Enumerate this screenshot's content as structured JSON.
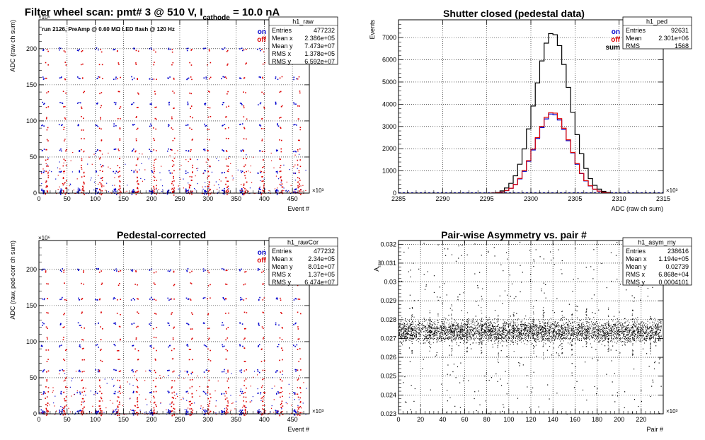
{
  "pads": [
    {
      "id": "raw",
      "title": "Filter wheel scan: pmt#   3 @   510 V, I",
      "title_sub": "cathode",
      "title_tail": " = 10.0 nA",
      "subtitle": "run 2126, PreAmp @ 0.60 MΩ   LED flash @  120 Hz",
      "ylabel": "ADC (raw ch sum)",
      "xlabel": "Event #",
      "xexp": "×10³",
      "yexp": "×10⁶",
      "legend": [
        {
          "text": "on",
          "color": "#0000cc"
        },
        {
          "text": "off",
          "color": "#dd0000"
        }
      ],
      "stats": {
        "name": "h1_raw",
        "rows": [
          [
            "Entries",
            "477232"
          ],
          [
            "Mean x",
            "2.386e+05"
          ],
          [
            "Mean y",
            "7.473e+07"
          ],
          [
            "RMS x",
            "1.378e+05"
          ],
          [
            "RMS y",
            "6.592e+07"
          ]
        ]
      }
    },
    {
      "id": "ped",
      "title": "Shutter closed (pedestal data)",
      "ylabel": "Events",
      "xlabel": "ADC (raw ch sum)",
      "xexp": "×10³",
      "legend": [
        {
          "text": "on",
          "color": "#0000cc"
        },
        {
          "text": "off",
          "color": "#dd0000"
        },
        {
          "text": "sum",
          "color": "#000000"
        }
      ],
      "stats": {
        "name": "h1_ped",
        "rows": [
          [
            "Entries",
            "92631"
          ],
          [
            "Mean",
            "2.301e+06"
          ],
          [
            "RMS",
            "1568"
          ]
        ]
      }
    },
    {
      "id": "cor",
      "title": "Pedestal-corrected",
      "ylabel": "ADC (raw, ped-corr ch sum)",
      "xlabel": "Event #",
      "xexp": "×10³",
      "yexp": "×10⁶",
      "legend": [
        {
          "text": "on",
          "color": "#0000cc"
        },
        {
          "text": "off",
          "color": "#dd0000"
        }
      ],
      "stats": {
        "name": "h1_rawCor",
        "rows": [
          [
            "Entries",
            "477232"
          ],
          [
            "Mean x",
            "2.34e+05"
          ],
          [
            "Mean y",
            "8.01e+07"
          ],
          [
            "RMS x",
            "1.37e+05"
          ],
          [
            "RMS y",
            "6.474e+07"
          ]
        ]
      }
    },
    {
      "id": "asym",
      "title": "Pair-wise Asymmetry vs. pair #",
      "ylabel": "A_raw",
      "xlabel": "Pair #",
      "xexp": "×10³",
      "stats": {
        "name": "h1_asym_my",
        "rows": [
          [
            "Entries",
            "238616"
          ],
          [
            "Mean x",
            "1.194e+05"
          ],
          [
            "Mean y",
            "0.02739"
          ],
          [
            "RMS x",
            "6.868e+04"
          ],
          [
            "RMS y",
            "0.0004101"
          ]
        ]
      }
    }
  ],
  "chart_data": [
    {
      "type": "scatter",
      "pad": "raw",
      "title": "Filter wheel scan: pmt#   3 @   510 V, I_cathode = 10.0 nA",
      "xlabel": "Event #",
      "ylabel": "ADC (raw ch sum)",
      "x_unit": "10^3",
      "y_unit": "10^6",
      "xlim": [
        0,
        480
      ],
      "ylim": [
        0,
        240
      ],
      "xticks": [
        0,
        50,
        100,
        150,
        200,
        250,
        300,
        350,
        400,
        450
      ],
      "yticks": [
        0,
        50,
        100,
        150,
        200
      ],
      "grid": true,
      "legend": "top-right",
      "period": 32,
      "period_offset": 3,
      "series": [
        {
          "name": "on",
          "color": "#0000cc",
          "levels": [
            1,
            3,
            5,
            30,
            60,
            95,
            125,
            160,
            200
          ]
        },
        {
          "name": "off",
          "color": "#dd0000",
          "levels": [
            0,
            2,
            4,
            8,
            12,
            17,
            23,
            30,
            38,
            48,
            60,
            75,
            90,
            105,
            120,
            140,
            160,
            180,
            198
          ]
        }
      ]
    },
    {
      "type": "line",
      "pad": "ped",
      "title": "Shutter closed (pedestal data)",
      "xlabel": "ADC (raw ch sum)",
      "ylabel": "Events",
      "x_unit": "10^3",
      "xlim": [
        2285,
        2315
      ],
      "ylim": [
        0,
        7800
      ],
      "xticks": [
        2285,
        2290,
        2295,
        2300,
        2305,
        2310,
        2315
      ],
      "yticks": [
        0,
        1000,
        2000,
        3000,
        4000,
        5000,
        6000,
        7000
      ],
      "grid": true,
      "legend": "top-right",
      "bin_width": 0.5,
      "x_start": 2295.5,
      "series": [
        {
          "name": "sum",
          "color": "#000000",
          "values": [
            5,
            30,
            100,
            230,
            440,
            780,
            1300,
            1990,
            2890,
            3920,
            4960,
            5950,
            6750,
            7180,
            7130,
            6640,
            5790,
            4760,
            3640,
            2630,
            1770,
            1110,
            650,
            350,
            180,
            80,
            30
          ]
        },
        {
          "name": "on",
          "color": "#0000cc",
          "values": [
            2,
            15,
            50,
            110,
            220,
            390,
            640,
            980,
            1430,
            1940,
            2460,
            2950,
            3340,
            3560,
            3530,
            3290,
            2870,
            2360,
            1810,
            1300,
            880,
            550,
            320,
            170,
            90,
            40,
            15
          ]
        },
        {
          "name": "off",
          "color": "#dd0000",
          "values": [
            3,
            15,
            50,
            120,
            220,
            390,
            660,
            1010,
            1460,
            1980,
            2500,
            3000,
            3410,
            3620,
            3600,
            3350,
            2920,
            2400,
            1830,
            1330,
            890,
            560,
            330,
            180,
            90,
            40,
            15
          ]
        }
      ]
    },
    {
      "type": "scatter",
      "pad": "cor",
      "title": "Pedestal-corrected",
      "xlabel": "Event #",
      "ylabel": "ADC (raw, ped-corr ch sum)",
      "x_unit": "10^3",
      "y_unit": "10^6",
      "xlim": [
        0,
        480
      ],
      "ylim": [
        0,
        240
      ],
      "xticks": [
        0,
        50,
        100,
        150,
        200,
        250,
        300,
        350,
        400,
        450
      ],
      "yticks": [
        0,
        50,
        100,
        150,
        200
      ],
      "grid": true,
      "legend": "top-right",
      "period": 32,
      "period_offset": 3,
      "series": [
        {
          "name": "on",
          "color": "#0000cc",
          "levels": [
            1,
            3,
            5,
            30,
            60,
            95,
            125,
            160,
            200
          ]
        },
        {
          "name": "off",
          "color": "#dd0000",
          "levels": [
            0,
            2,
            4,
            8,
            12,
            17,
            23,
            30,
            38,
            48,
            60,
            75,
            90,
            105,
            120,
            140,
            160,
            180,
            198
          ]
        }
      ]
    },
    {
      "type": "scatter",
      "pad": "asym",
      "title": "Pair-wise Asymmetry vs. pair #",
      "xlabel": "Pair #",
      "ylabel": "A_raw",
      "x_unit": "10^3",
      "xlim": [
        0,
        240
      ],
      "ylim": [
        0.023,
        0.0322
      ],
      "xticks": [
        0,
        20,
        40,
        60,
        80,
        100,
        120,
        140,
        160,
        180,
        200,
        220
      ],
      "yticks": [
        0.023,
        0.024,
        0.025,
        0.026,
        0.027,
        0.028,
        0.029,
        0.03,
        0.031,
        0.032
      ],
      "ytick_labels": [
        "0.023",
        "0.024",
        "0.025",
        "0.026",
        "0.027",
        "0.028",
        "0.029",
        "0.03",
        "0.031",
        "0.032"
      ],
      "grid": true,
      "band": {
        "center": 0.02739,
        "half_width": 0.00085
      },
      "spikes": [
        [
          12,
          0.0287,
          0.0262
        ],
        [
          28,
          0.0286,
          0.0263
        ],
        [
          48,
          0.0289,
          0.0261
        ],
        [
          62,
          0.0284,
          0.0263
        ],
        [
          75,
          0.0288,
          0.0262
        ],
        [
          90,
          0.0283,
          0.0257
        ],
        [
          104,
          0.0286,
          0.0262
        ],
        [
          122,
          0.0288,
          0.0262
        ],
        [
          131,
          0.0287,
          0.0261
        ],
        [
          148,
          0.0285,
          0.0262
        ],
        [
          157,
          0.0284,
          0.0256
        ],
        [
          170,
          0.0286,
          0.0262
        ],
        [
          190,
          0.0287,
          0.0262
        ],
        [
          212,
          0.0287,
          0.0261
        ],
        [
          228,
          0.0286,
          0.0262
        ]
      ]
    }
  ]
}
